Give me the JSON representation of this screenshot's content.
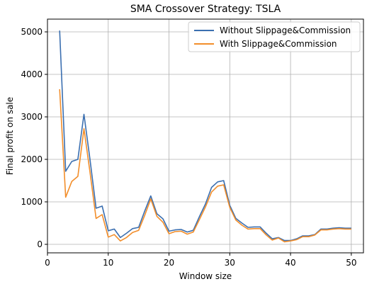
{
  "chart_data": {
    "type": "line",
    "title": "SMA Crossover Strategy: TSLA",
    "xlabel": "Window size",
    "ylabel": "Final profit on sale",
    "xlim": [
      0,
      52
    ],
    "ylim": [
      -200,
      5300
    ],
    "xticks": [
      0,
      10,
      20,
      30,
      40,
      50
    ],
    "yticks": [
      0,
      1000,
      2000,
      3000,
      4000,
      5000
    ],
    "grid": true,
    "legend_position": "top-right",
    "x": [
      2,
      3,
      4,
      5,
      6,
      7,
      8,
      9,
      10,
      11,
      12,
      13,
      14,
      15,
      16,
      17,
      18,
      19,
      20,
      21,
      22,
      23,
      24,
      25,
      26,
      27,
      28,
      29,
      30,
      31,
      32,
      33,
      34,
      35,
      36,
      37,
      38,
      39,
      40,
      41,
      42,
      43,
      44,
      45,
      46,
      47,
      48,
      49,
      50
    ],
    "series": [
      {
        "name": "Without Slippage&Commission",
        "color": "#3b6fb0",
        "values": [
          5030,
          1720,
          1950,
          2000,
          3060,
          2000,
          850,
          900,
          320,
          360,
          160,
          260,
          370,
          400,
          780,
          1140,
          720,
          600,
          310,
          340,
          350,
          290,
          330,
          650,
          950,
          1340,
          1470,
          1500,
          920,
          610,
          500,
          400,
          410,
          410,
          260,
          130,
          160,
          90,
          90,
          130,
          200,
          200,
          230,
          360,
          360,
          380,
          390,
          380,
          380
        ]
      },
      {
        "name": "With Slippage&Commission",
        "color": "#f28e2b",
        "values": [
          3650,
          1110,
          1480,
          1600,
          2720,
          1700,
          610,
          700,
          170,
          230,
          80,
          160,
          280,
          330,
          680,
          1070,
          660,
          520,
          250,
          300,
          310,
          240,
          290,
          580,
          880,
          1230,
          1370,
          1400,
          870,
          570,
          450,
          360,
          370,
          370,
          220,
          100,
          150,
          60,
          80,
          110,
          180,
          180,
          220,
          340,
          340,
          360,
          370,
          360,
          360
        ]
      }
    ]
  }
}
